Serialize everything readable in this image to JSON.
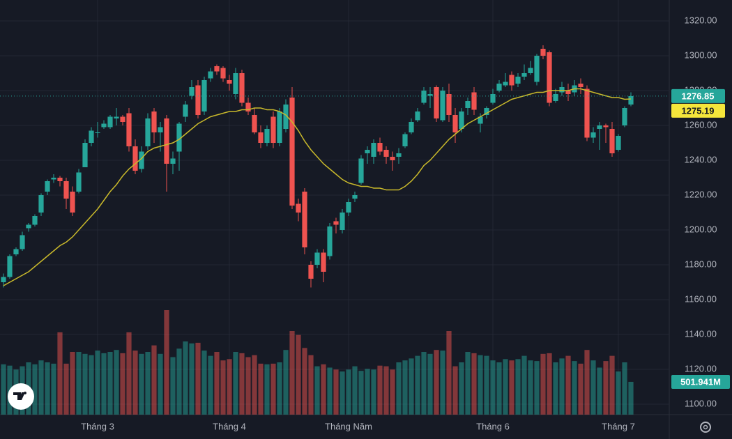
{
  "chart_data": {
    "type": "candlestick",
    "categories": [
      null,
      null,
      null,
      null,
      null,
      null,
      null,
      null,
      null,
      null,
      null,
      null,
      null,
      null,
      null,
      "Tháng 3",
      null,
      null,
      null,
      null,
      null,
      null,
      null,
      null,
      null,
      null,
      null,
      null,
      null,
      null,
      null,
      null,
      null,
      null,
      null,
      null,
      "Tháng 4",
      null,
      null,
      null,
      null,
      null,
      null,
      null,
      null,
      null,
      null,
      null,
      null,
      null,
      null,
      null,
      null,
      null,
      null,
      "Tháng Năm",
      null,
      null,
      null,
      null,
      null,
      null,
      null,
      null,
      null,
      null,
      null,
      null,
      null,
      null,
      null,
      null,
      null,
      null,
      null,
      null,
      null,
      null,
      "Tháng 6",
      null,
      null,
      null,
      null,
      null,
      null,
      null,
      null,
      null,
      null,
      null,
      null,
      null,
      null,
      null,
      null,
      null,
      null,
      null,
      "Tháng 7",
      null,
      null
    ],
    "open": [
      1170,
      1173,
      1186,
      1189,
      1201,
      1203,
      1210,
      1222,
      1229,
      1230,
      1228,
      1222,
      1222,
      1236,
      1250,
      1256,
      1259,
      1259,
      1264,
      1265,
      1267,
      1248,
      1235,
      1248,
      1268,
      1256,
      1264,
      1238,
      1245,
      1265,
      1277,
      1283,
      1268,
      1287,
      1294,
      1293,
      1286,
      1278,
      1290,
      1273,
      1266,
      1256,
      1250,
      1265,
      1250,
      1258,
      1276,
      1215,
      1222,
      1180,
      1180,
      1187,
      1185,
      1205,
      1200,
      1210,
      1218,
      1227,
      1244,
      1242,
      1250,
      1246,
      1242,
      1242,
      1248,
      1256,
      1263,
      1273,
      1277,
      1282,
      1263,
      1278,
      1266,
      1258,
      1270,
      1279,
      1261,
      1266,
      1273,
      1280,
      1283,
      1289,
      1284,
      1288,
      1290,
      1285,
      1304,
      1302,
      1274,
      1279,
      1280,
      1279,
      1284,
      1281,
      1253,
      1258,
      1260,
      1258,
      1246,
      1260,
      1272
    ],
    "high": [
      1175,
      1186,
      1190,
      1199,
      1204,
      1209,
      1221,
      1229,
      1232,
      1231,
      1230,
      1225,
      1235,
      1252,
      1259,
      1262,
      1263,
      1266,
      1270,
      1266,
      1270,
      1252,
      1248,
      1267,
      1270,
      1262,
      1266,
      1245,
      1262,
      1274,
      1286,
      1286,
      1288,
      1293,
      1295,
      1294,
      1289,
      1293,
      1292,
      1276,
      1270,
      1260,
      1260,
      1268,
      1270,
      1275,
      1282,
      1218,
      1224,
      1182,
      1189,
      1189,
      1204,
      1207,
      1212,
      1218,
      1222,
      1243,
      1248,
      1252,
      1253,
      1248,
      1245,
      1247,
      1256,
      1264,
      1270,
      1282,
      1282,
      1283,
      1282,
      1284,
      1270,
      1270,
      1276,
      1282,
      1267,
      1271,
      1281,
      1286,
      1290,
      1291,
      1290,
      1295,
      1297,
      1301,
      1306,
      1303,
      1281,
      1285,
      1284,
      1286,
      1287,
      1283,
      1259,
      1262,
      1261,
      1262,
      1255,
      1271,
      1279
    ],
    "low": [
      1167,
      1172,
      1185,
      1188,
      1199,
      1202,
      1208,
      1220,
      1227,
      1225,
      1212,
      1208,
      1221,
      1236,
      1248,
      1253,
      1258,
      1258,
      1260,
      1260,
      1245,
      1232,
      1233,
      1246,
      1250,
      1245,
      1222,
      1232,
      1234,
      1262,
      1275,
      1264,
      1266,
      1285,
      1289,
      1285,
      1280,
      1275,
      1271,
      1266,
      1255,
      1247,
      1248,
      1247,
      1248,
      1256,
      1212,
      1205,
      1186,
      1167,
      1178,
      1170,
      1183,
      1198,
      1198,
      1208,
      1216,
      1226,
      1238,
      1238,
      1243,
      1238,
      1234,
      1238,
      1247,
      1255,
      1262,
      1272,
      1270,
      1262,
      1262,
      1262,
      1250,
      1256,
      1266,
      1266,
      1256,
      1264,
      1272,
      1279,
      1282,
      1280,
      1282,
      1286,
      1289,
      1283,
      1298,
      1271,
      1273,
      1277,
      1274,
      1277,
      1278,
      1251,
      1250,
      1246,
      1250,
      1242,
      1245,
      1259,
      1271
    ],
    "close": [
      1173,
      1185,
      1189,
      1197,
      1203,
      1208,
      1220,
      1228,
      1230,
      1228,
      1218,
      1210,
      1233,
      1250,
      1257,
      1256,
      1261,
      1265,
      1265,
      1262,
      1248,
      1234,
      1245,
      1264,
      1256,
      1259,
      1238,
      1241,
      1261,
      1272,
      1282,
      1266,
      1286,
      1291,
      1291,
      1287,
      1284,
      1290,
      1273,
      1268,
      1256,
      1250,
      1258,
      1250,
      1268,
      1272,
      1214,
      1210,
      1190,
      1172,
      1187,
      1176,
      1202,
      1203,
      1210,
      1216,
      1220,
      1241,
      1246,
      1250,
      1245,
      1242,
      1240,
      1244,
      1255,
      1262,
      1268,
      1280,
      1278,
      1264,
      1280,
      1266,
      1256,
      1268,
      1274,
      1269,
      1265,
      1270,
      1278,
      1284,
      1285,
      1283,
      1288,
      1290,
      1293,
      1300,
      1300,
      1273,
      1278,
      1282,
      1278,
      1283,
      1282,
      1253,
      1256,
      1260,
      1259,
      1244,
      1254,
      1270,
      1276.85
    ],
    "close_last_label": "1276.85",
    "volume": [
      770,
      750,
      690,
      740,
      800,
      770,
      830,
      800,
      780,
      1260,
      780,
      960,
      960,
      930,
      910,
      980,
      940,
      960,
      990,
      940,
      1260,
      980,
      930,
      960,
      1060,
      930,
      1600,
      880,
      1010,
      1120,
      1090,
      1100,
      980,
      900,
      960,
      830,
      850,
      960,
      940,
      880,
      910,
      780,
      770,
      780,
      800,
      990,
      1280,
      1220,
      1020,
      910,
      740,
      770,
      720,
      690,
      660,
      690,
      740,
      670,
      700,
      690,
      750,
      740,
      690,
      800,
      830,
      860,
      900,
      960,
      930,
      990,
      980,
      1280,
      740,
      800,
      960,
      940,
      910,
      900,
      830,
      800,
      850,
      830,
      850,
      900,
      830,
      820,
      930,
      940,
      800,
      860,
      900,
      820,
      780,
      990,
      830,
      720,
      820,
      900,
      660,
      800,
      501.941
    ],
    "volume_last_label": "501.941M",
    "ma": {
      "color": "#c9b92b",
      "values": [
        1168,
        1170,
        1172,
        1174,
        1176,
        1179,
        1182,
        1185,
        1188,
        1191,
        1193,
        1196,
        1200,
        1204,
        1208,
        1212,
        1217,
        1222,
        1226,
        1231,
        1235,
        1238,
        1241,
        1245,
        1247,
        1248,
        1249,
        1250,
        1252,
        1255,
        1258,
        1261,
        1263,
        1265,
        1266,
        1267,
        1268,
        1268,
        1269,
        1269,
        1270,
        1270,
        1269,
        1269,
        1268,
        1266,
        1262,
        1257,
        1251,
        1246,
        1242,
        1238,
        1235,
        1232,
        1229,
        1227,
        1226,
        1225,
        1225,
        1224,
        1224,
        1223,
        1223,
        1223,
        1225,
        1228,
        1232,
        1237,
        1240,
        1244,
        1248,
        1252,
        1255,
        1258,
        1261,
        1263,
        1265,
        1267,
        1269,
        1271,
        1273,
        1275,
        1276,
        1277,
        1278,
        1279,
        1279,
        1280,
        1280,
        1280,
        1280,
        1281,
        1281,
        1280,
        1279,
        1278,
        1277,
        1276,
        1276,
        1275,
        1275.19
      ],
      "last_label": "1275.19"
    },
    "up_color": "#26a69a",
    "down_color": "#ef5350",
    "ylim": [
      1094,
      1332
    ],
    "yticks": [
      {
        "value": 1100,
        "label": "1100.00"
      },
      {
        "value": 1120,
        "label": "1120.00"
      },
      {
        "value": 1140,
        "label": "1140.00"
      },
      {
        "value": 1160,
        "label": "1160.00"
      },
      {
        "value": 1180,
        "label": "1180.00"
      },
      {
        "value": 1200,
        "label": "1200.00"
      },
      {
        "value": 1220,
        "label": "1220.00"
      },
      {
        "value": 1240,
        "label": "1240.00"
      },
      {
        "value": 1260,
        "label": "1260.00"
      },
      {
        "value": 1280,
        "label": "1280.00"
      },
      {
        "value": 1300,
        "label": "1300.00"
      },
      {
        "value": 1320,
        "label": "1320.00"
      }
    ],
    "grid": true
  }
}
